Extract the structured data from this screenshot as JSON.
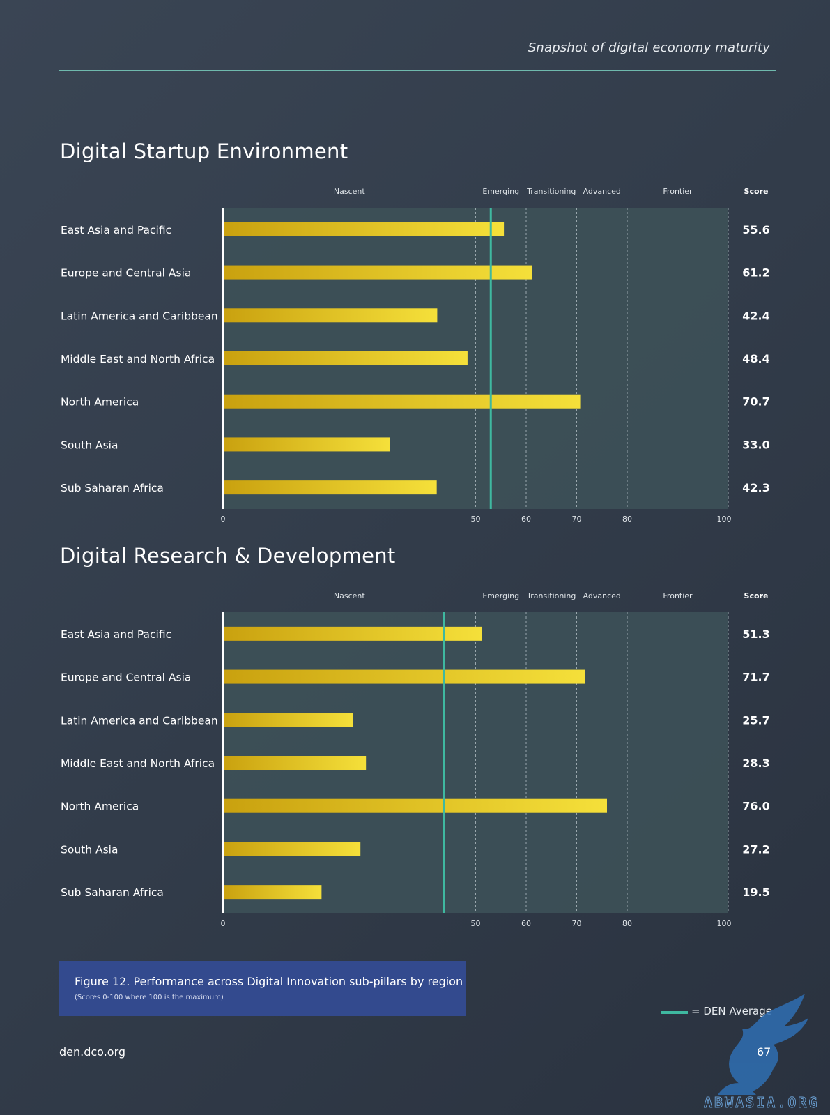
{
  "header": {
    "title": "Snapshot of digital economy maturity"
  },
  "colors": {
    "bar": "#e6c62a",
    "bar_dark": "#c9a10f",
    "average_line": "#3fb8a0",
    "plot_bg": "#3d5158"
  },
  "chart_data": [
    {
      "type": "bar",
      "orientation": "horizontal",
      "title": "Digital Startup Environment",
      "categories": [
        "East Asia and Pacific",
        "Europe and Central Asia",
        "Latin America and Caribbean",
        "Middle East and North Africa",
        "North America",
        "South Asia",
        "Sub Saharan Africa"
      ],
      "values": [
        55.6,
        61.2,
        42.4,
        48.4,
        70.7,
        33.0,
        42.3
      ],
      "value_labels": [
        "55.6",
        "61.2",
        "42.4",
        "48.4",
        "70.7",
        "33.0",
        "42.3"
      ],
      "score_header": "Score",
      "average": 53,
      "xlim": [
        0,
        100
      ],
      "xticks": [
        0,
        50,
        60,
        70,
        80,
        100
      ],
      "xtick_labels": [
        "0",
        "50",
        "60",
        "70",
        "80",
        "100"
      ],
      "dashed_gridlines": [
        50,
        60,
        70,
        80,
        100
      ],
      "bands": [
        {
          "label": "Nascent",
          "center": 25
        },
        {
          "label": "Emerging",
          "center": 55
        },
        {
          "label": "Transitioning",
          "center": 65
        },
        {
          "label": "Advanced",
          "center": 75
        },
        {
          "label": "Frontier",
          "center": 90
        }
      ]
    },
    {
      "type": "bar",
      "orientation": "horizontal",
      "title": "Digital Research & Development",
      "categories": [
        "East Asia and Pacific",
        "Europe and Central Asia",
        "Latin America and Caribbean",
        "Middle East and North Africa",
        "North America",
        "South Asia",
        "Sub Saharan Africa"
      ],
      "values": [
        51.3,
        71.7,
        25.7,
        28.3,
        76.0,
        27.2,
        19.5
      ],
      "value_labels": [
        "51.3",
        "71.7",
        "25.7",
        "28.3",
        "76.0",
        "27.2",
        "19.5"
      ],
      "score_header": "Score",
      "average": 43.7,
      "xlim": [
        0,
        100
      ],
      "xticks": [
        0,
        50,
        60,
        70,
        80,
        100
      ],
      "xtick_labels": [
        "0",
        "50",
        "60",
        "70",
        "80",
        "100"
      ],
      "dashed_gridlines": [
        50,
        60,
        70,
        80,
        100
      ],
      "bands": [
        {
          "label": "Nascent",
          "center": 25
        },
        {
          "label": "Emerging",
          "center": 55
        },
        {
          "label": "Transitioning",
          "center": 65
        },
        {
          "label": "Advanced",
          "center": 75
        },
        {
          "label": "Frontier",
          "center": 90
        }
      ]
    }
  ],
  "caption": {
    "main": "Figure 12. Performance across Digital Innovation sub-pillars by region",
    "sub": "(Scores 0-100 where 100 is the maximum)"
  },
  "legend": {
    "label": "= DEN Average"
  },
  "footer": {
    "url": "den.dco.org",
    "page_number": "67"
  },
  "watermark": {
    "text": "ABWASIA.ORG",
    "icon": "griffin-logo-icon"
  }
}
